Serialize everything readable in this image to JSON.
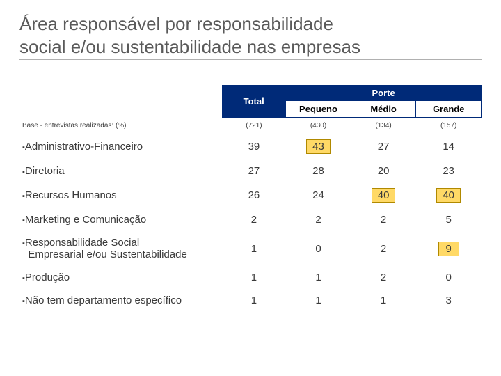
{
  "title_line1": "Área responsável por responsabilidade",
  "title_line2": "social e/ou sustentabilidade nas empresas",
  "header": {
    "total": "Total",
    "porte": "Porte",
    "pequeno": "Pequeno",
    "medio": "Médio",
    "grande": "Grande"
  },
  "base_row": {
    "label": "Base - entrevistas realizadas: (%)",
    "total": "(721)",
    "pequeno": "(430)",
    "medio": "(134)",
    "grande": "(157)"
  },
  "rows": [
    {
      "label": "Administrativo-Financeiro",
      "total": "39",
      "pequeno": "43",
      "medio": "27",
      "grande": "14",
      "hl": [
        "pequeno"
      ]
    },
    {
      "label": "Diretoria",
      "total": "27",
      "pequeno": "28",
      "medio": "20",
      "grande": "23",
      "hl": []
    },
    {
      "label": "Recursos Humanos",
      "total": "26",
      "pequeno": "24",
      "medio": "40",
      "grande": "40",
      "hl": [
        "medio",
        "grande"
      ]
    },
    {
      "label": "Marketing e Comunicação",
      "total": "2",
      "pequeno": "2",
      "medio": "2",
      "grande": "5",
      "hl": []
    },
    {
      "label": "Responsabilidade Social\nEmpresarial e/ou Sustentabilidade",
      "total": "1",
      "pequeno": "0",
      "medio": "2",
      "grande": "9",
      "hl": [
        "grande"
      ]
    },
    {
      "label": "Produção",
      "total": "1",
      "pequeno": "1",
      "medio": "2",
      "grande": "0",
      "hl": []
    },
    {
      "label": "Não tem departamento específico",
      "total": "1",
      "pequeno": "1",
      "medio": "1",
      "grande": "3",
      "hl": []
    }
  ],
  "highlight_style": {
    "bg": "#ffd966",
    "border": "#b08900"
  },
  "header_bg": "#002a78"
}
